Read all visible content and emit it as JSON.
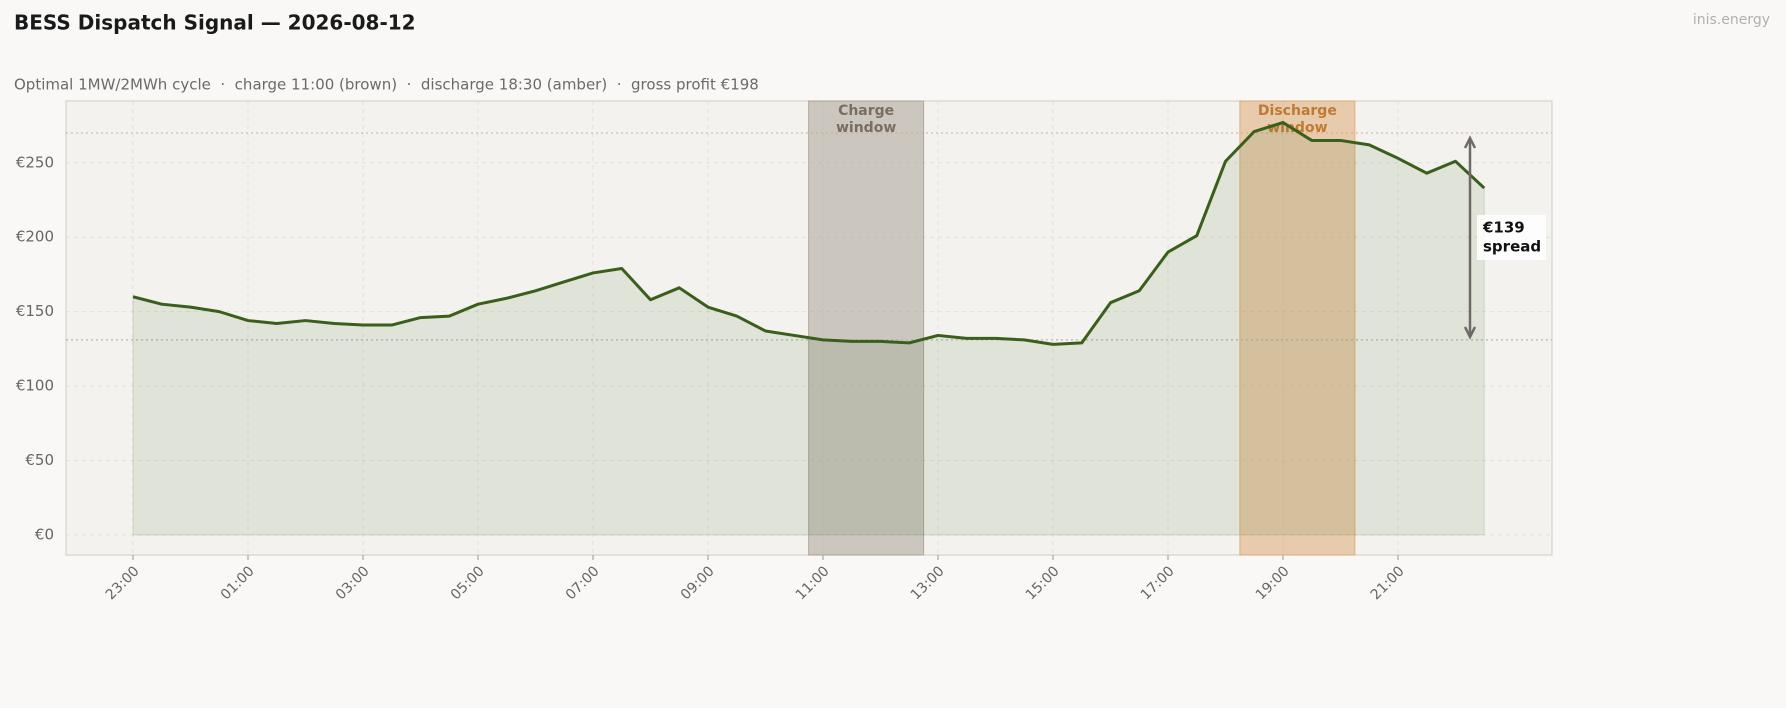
{
  "chart_data": {
    "type": "line",
    "title": "BESS Dispatch Signal — 2026-08-12",
    "subtitle": "Optimal 1MW/2MWh cycle  ·  charge 11:00 (brown)  ·  discharge 18:30 (amber)  ·  gross profit €198",
    "watermark": "inis.energy",
    "categories": [
      "23:00",
      null,
      null,
      null,
      "01:00",
      null,
      null,
      null,
      "03:00",
      null,
      null,
      null,
      "05:00",
      null,
      null,
      null,
      "07:00",
      null,
      null,
      null,
      "09:00",
      null,
      null,
      null,
      "11:00",
      null,
      null,
      null,
      "13:00",
      null,
      null,
      null,
      "15:00",
      null,
      null,
      null,
      "17:00",
      null,
      null,
      null,
      "19:00",
      null,
      null,
      null,
      "21:00",
      null,
      null,
      null
    ],
    "series": [
      {
        "name": "Price",
        "color": "#3a5e1c",
        "values": [
          160,
          155,
          153,
          150,
          144,
          142,
          144,
          142,
          141,
          141,
          146,
          147,
          155,
          159,
          164,
          170,
          176,
          179,
          158,
          166,
          153,
          147,
          137,
          134,
          131,
          130,
          130,
          129,
          134,
          132,
          132,
          131,
          128,
          129,
          156,
          164,
          190,
          201,
          251,
          271,
          277,
          265,
          265,
          262,
          253,
          243,
          251,
          233
        ]
      }
    ],
    "ylim": [
      -13.5,
      291.5
    ],
    "yticks": [
      {
        "value": 0,
        "label": "€0"
      },
      {
        "value": 50,
        "label": "€50"
      },
      {
        "value": 100,
        "label": "€100"
      },
      {
        "value": 150,
        "label": "€150"
      },
      {
        "value": 200,
        "label": "€200"
      },
      {
        "value": 250,
        "label": "€250"
      }
    ],
    "grid": true,
    "bands": [
      {
        "label": [
          "Charge",
          "window"
        ],
        "start": 23.5,
        "end": 27.5,
        "color": "#a39c90",
        "text_color": "#7a6e60"
      },
      {
        "label": [
          "Discharge",
          "window"
        ],
        "start": 38.5,
        "end": 42.5,
        "color": "#dba36a",
        "text_color": "#c07a34"
      }
    ],
    "reference_lines": [
      {
        "value": 270,
        "color": "#d4a98a"
      },
      {
        "value": 131,
        "color": "#a8a8a0"
      }
    ],
    "spread_label": [
      "€139",
      "spread"
    ]
  }
}
